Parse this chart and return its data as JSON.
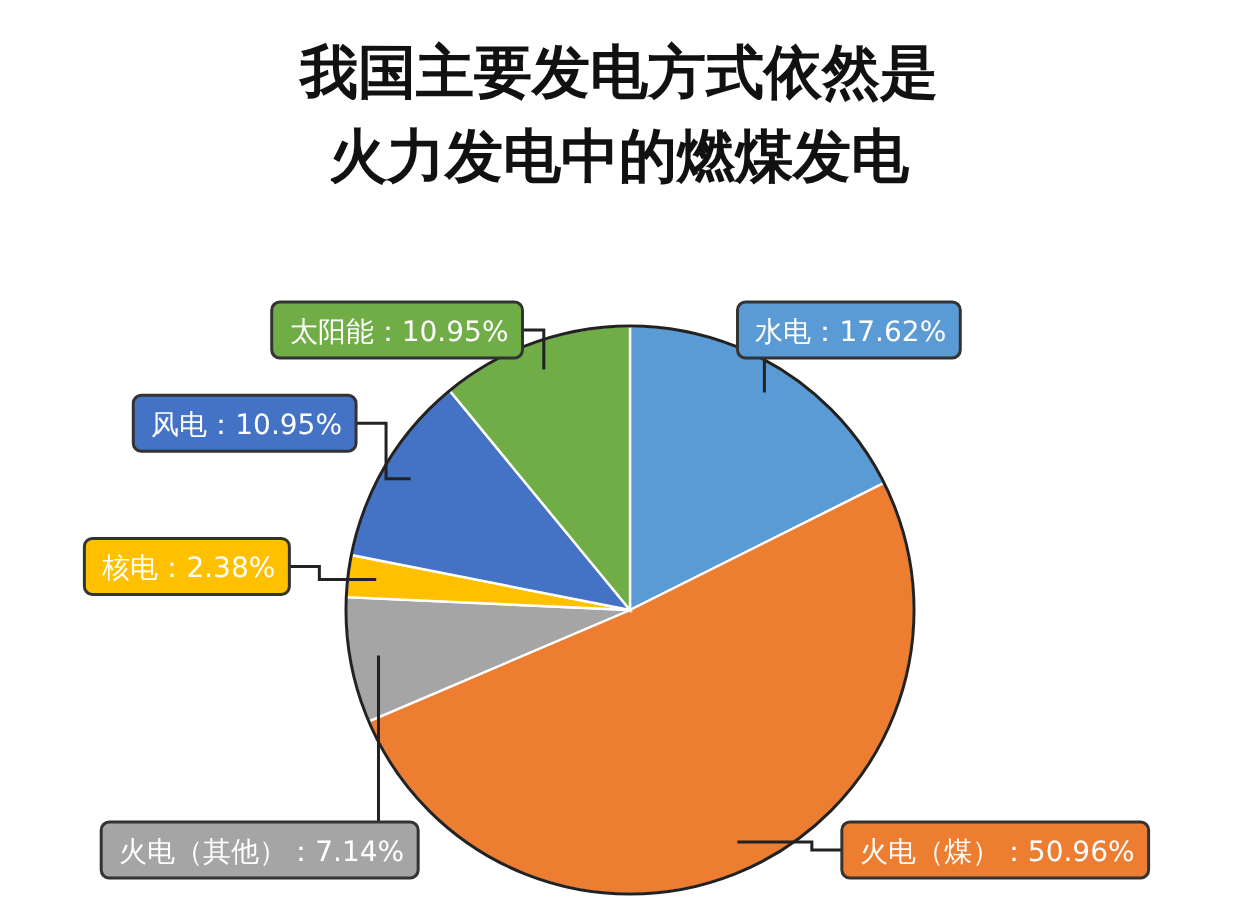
{
  "chart_data": {
    "type": "pie",
    "title": "我国主要发电方式依然是火力发电中的燃煤发电",
    "categories": [
      "水电",
      "火电（煤）",
      "火电（其他）",
      "核电",
      "风电",
      "太阳能"
    ],
    "values": [
      17.62,
      50.96,
      7.14,
      2.38,
      10.95,
      10.95
    ],
    "value_labels": [
      "17.62%",
      "50.96%",
      "7.14%",
      "2.38%",
      "10.95%",
      "10.95%"
    ],
    "colors": [
      "#5b9bd5",
      "#ed7d31",
      "#a5a5a5",
      "#ffc000",
      "#4472c4",
      "#70ad47"
    ]
  }
}
